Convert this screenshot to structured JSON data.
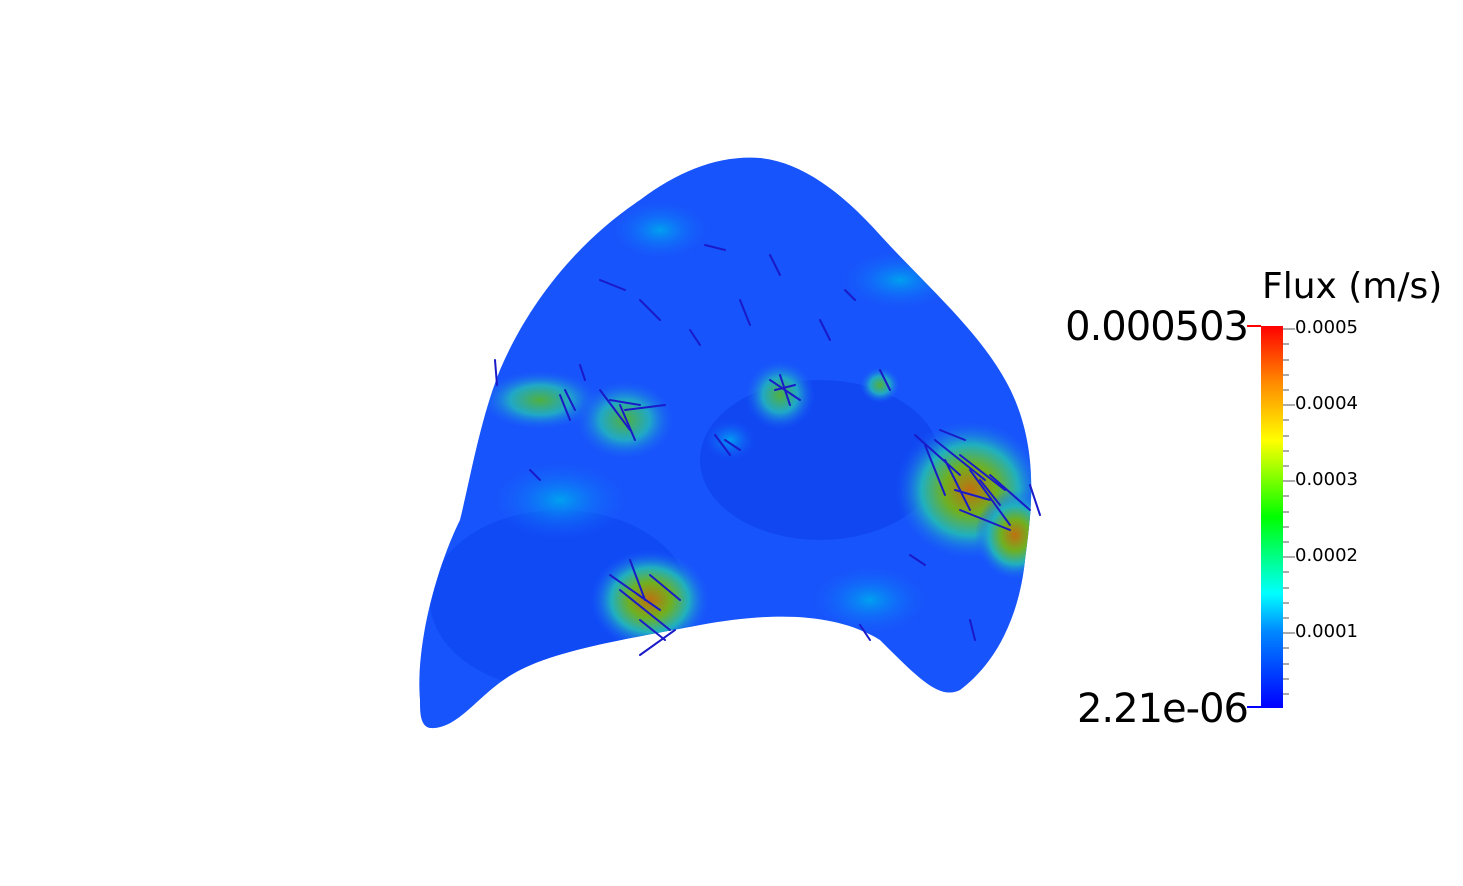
{
  "legend": {
    "title": "Flux (m/s)",
    "range_max": "0.000503",
    "range_min": "2.21e-06",
    "ticks": [
      "0.0005",
      "0.0004",
      "0.0003",
      "0.0002",
      "0.0001"
    ],
    "colormap": [
      "#0000ff",
      "#0080ff",
      "#00ffff",
      "#00ff00",
      "#ffff00",
      "#ff8000",
      "#ff0000"
    ]
  },
  "scene": {
    "background": "#ffffff",
    "surface_base_color": "#1a5cff",
    "glyph_color": "#1a1ac8"
  }
}
